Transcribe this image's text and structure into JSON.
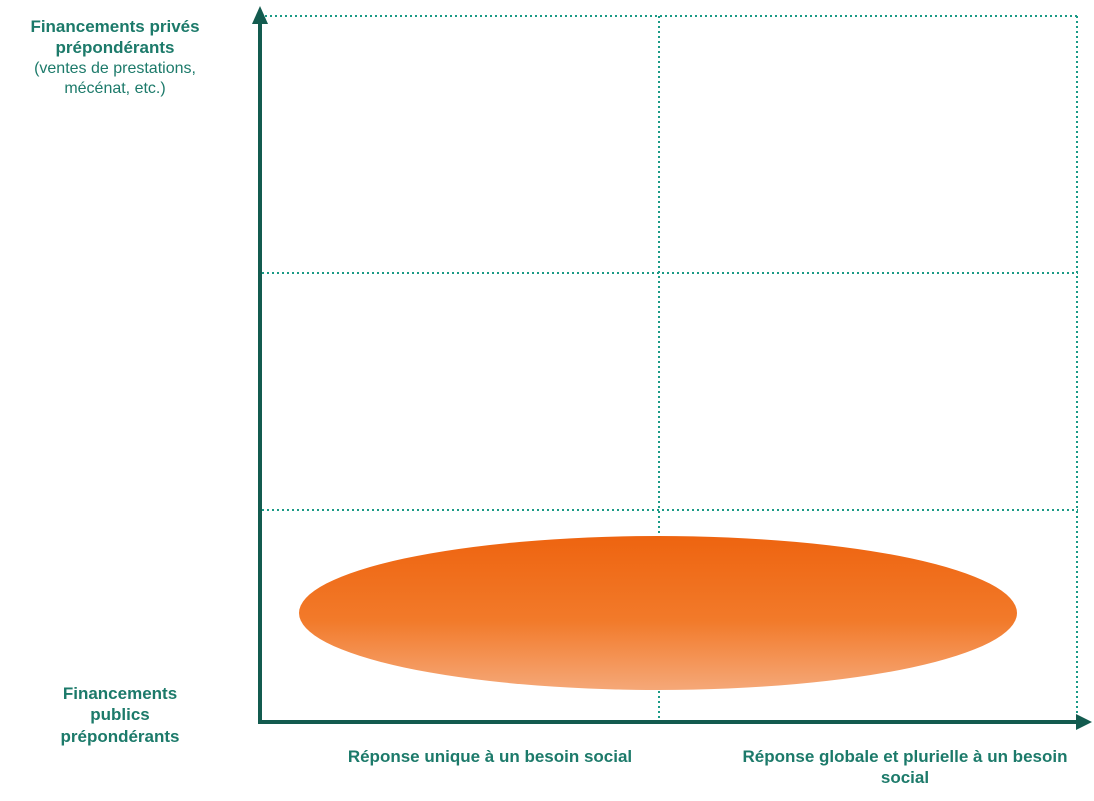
{
  "y_axis": {
    "top_label": "Financements privés prépondérants",
    "top_sublabel": "(ventes de prestations, mécénat, etc.)",
    "bottom_label": "Financements publics prépondérants"
  },
  "x_axis": {
    "left_label": "Réponse unique à un besoin social",
    "right_label": "Réponse globale et plurielle à un besoin social"
  },
  "colors": {
    "axis": "#135b4f",
    "grid": "#1a9a86",
    "text": "#1c7a6a",
    "ellipse_top": "#f06a10",
    "ellipse_bottom": "#f4a070"
  }
}
